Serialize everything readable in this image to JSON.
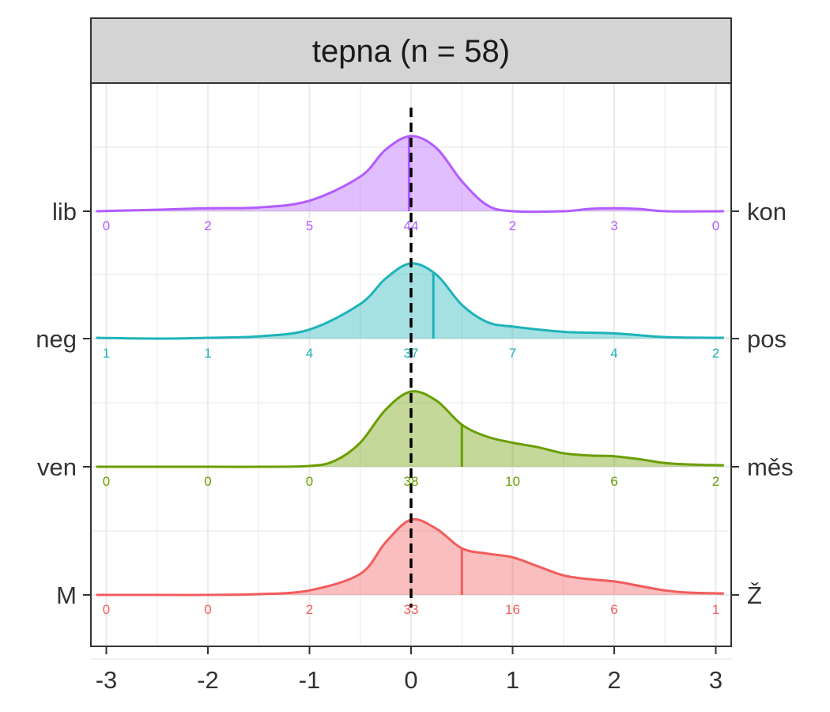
{
  "panel": {
    "strip_title": "tepna (n = 58)"
  },
  "chart_data": {
    "type": "ridgeline",
    "title": "tepna (n = 58)",
    "xlabel": "",
    "ylabel": "",
    "xlim": [
      -3,
      3
    ],
    "x_ticks": [
      "-3",
      "-2",
      "-1",
      "0",
      "1",
      "2",
      "3"
    ],
    "reference_line": {
      "x": 0,
      "style": "dashed",
      "color": "#000000"
    },
    "grid": true,
    "count_bins": [
      -3,
      -2,
      -1,
      0,
      1,
      2,
      3
    ],
    "series": [
      {
        "left_label": "M",
        "right_label": "Ž",
        "color": "#f25c5c",
        "mean": 0.5,
        "counts": [
          "0",
          "0",
          "2",
          "33",
          "16",
          "6",
          "1"
        ],
        "density": [
          [
            -3.1,
            0.0
          ],
          [
            -2.5,
            0.0
          ],
          [
            -2.0,
            0.0
          ],
          [
            -1.5,
            0.01
          ],
          [
            -1.0,
            0.06
          ],
          [
            -0.5,
            0.28
          ],
          [
            -0.25,
            0.7
          ],
          [
            0.0,
            1.0
          ],
          [
            0.25,
            0.88
          ],
          [
            0.5,
            0.62
          ],
          [
            0.75,
            0.55
          ],
          [
            1.0,
            0.5
          ],
          [
            1.25,
            0.38
          ],
          [
            1.5,
            0.26
          ],
          [
            1.75,
            0.21
          ],
          [
            2.0,
            0.18
          ],
          [
            2.25,
            0.12
          ],
          [
            2.5,
            0.06
          ],
          [
            2.75,
            0.03
          ],
          [
            3.08,
            0.02
          ]
        ]
      },
      {
        "left_label": "ven",
        "right_label": "měs",
        "color": "#6a9e00",
        "mean": 0.5,
        "counts": [
          "0",
          "0",
          "0",
          "38",
          "10",
          "6",
          "2"
        ],
        "density": [
          [
            -3.1,
            0.0
          ],
          [
            -2.0,
            0.0
          ],
          [
            -1.5,
            0.0
          ],
          [
            -1.0,
            0.01
          ],
          [
            -0.75,
            0.08
          ],
          [
            -0.5,
            0.32
          ],
          [
            -0.25,
            0.76
          ],
          [
            0.0,
            1.0
          ],
          [
            0.25,
            0.88
          ],
          [
            0.5,
            0.56
          ],
          [
            0.75,
            0.4
          ],
          [
            1.0,
            0.32
          ],
          [
            1.25,
            0.26
          ],
          [
            1.5,
            0.18
          ],
          [
            1.75,
            0.15
          ],
          [
            2.0,
            0.14
          ],
          [
            2.25,
            0.1
          ],
          [
            2.5,
            0.05
          ],
          [
            2.75,
            0.03
          ],
          [
            3.08,
            0.02
          ]
        ]
      },
      {
        "left_label": "neg",
        "right_label": "pos",
        "color": "#1eb3b8",
        "mean": 0.22,
        "counts": [
          "1",
          "1",
          "4",
          "37",
          "7",
          "4",
          "2"
        ],
        "density": [
          [
            -3.1,
            0.01
          ],
          [
            -2.5,
            0.0
          ],
          [
            -2.0,
            0.01
          ],
          [
            -1.5,
            0.03
          ],
          [
            -1.0,
            0.12
          ],
          [
            -0.5,
            0.46
          ],
          [
            -0.25,
            0.8
          ],
          [
            0.0,
            1.0
          ],
          [
            0.25,
            0.85
          ],
          [
            0.5,
            0.45
          ],
          [
            0.75,
            0.22
          ],
          [
            1.0,
            0.16
          ],
          [
            1.5,
            0.09
          ],
          [
            2.0,
            0.07
          ],
          [
            2.5,
            0.02
          ],
          [
            3.08,
            0.01
          ]
        ]
      },
      {
        "left_label": "lib",
        "right_label": "kon",
        "color": "#b35cff",
        "mean": -0.02,
        "counts": [
          "0",
          "2",
          "5",
          "44",
          "2",
          "3",
          "0"
        ],
        "density": [
          [
            -3.1,
            0.0
          ],
          [
            -2.5,
            0.02
          ],
          [
            -2.0,
            0.04
          ],
          [
            -1.5,
            0.05
          ],
          [
            -1.0,
            0.14
          ],
          [
            -0.5,
            0.46
          ],
          [
            -0.25,
            0.82
          ],
          [
            0.0,
            1.0
          ],
          [
            0.25,
            0.84
          ],
          [
            0.5,
            0.4
          ],
          [
            0.75,
            0.08
          ],
          [
            1.0,
            0.0
          ],
          [
            1.5,
            0.0
          ],
          [
            1.75,
            0.03
          ],
          [
            2.0,
            0.04
          ],
          [
            2.25,
            0.03
          ],
          [
            2.5,
            0.0
          ],
          [
            3.08,
            0.0
          ]
        ]
      }
    ]
  }
}
